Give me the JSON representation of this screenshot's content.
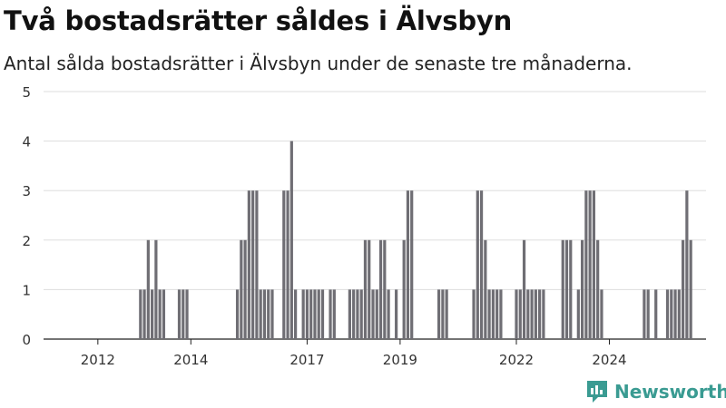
{
  "header": {
    "title": "Två bostadsrätter såldes i Älvsbyn",
    "subtitle": "Antal sålda bostadsrätter i Älvsbyn under de senaste tre månaderna."
  },
  "brand": {
    "name": "Newsworthy",
    "color": "#3a9b92"
  },
  "colors": {
    "bar": "#6f6e74",
    "highlight": "#2a9d8f",
    "grid": "#dddddd"
  },
  "chart_data": {
    "type": "bar",
    "title": "Två bostadsrätter såldes i Älvsbyn",
    "subtitle": "Antal sålda bostadsrätter i Älvsbyn under de senaste tre månaderna.",
    "xlabel": "",
    "ylabel": "",
    "ylim": [
      0,
      5
    ],
    "y_ticks": [
      0,
      1,
      2,
      3,
      4,
      5
    ],
    "x_ticks": [
      "2012",
      "2014",
      "2017",
      "2019",
      "2022",
      "2024"
    ],
    "x_tick_months": [
      12,
      36,
      66,
      90,
      120,
      144
    ],
    "grid": true,
    "start_period": "2011-01",
    "values": [
      0,
      0,
      0,
      0,
      0,
      0,
      0,
      0,
      0,
      0,
      0,
      0,
      0,
      0,
      0,
      0,
      0,
      0,
      0,
      0,
      0,
      0,
      0,
      1,
      1,
      2,
      1,
      2,
      1,
      1,
      0,
      0,
      0,
      1,
      1,
      1,
      0,
      0,
      0,
      0,
      0,
      0,
      0,
      0,
      0,
      0,
      0,
      0,
      1,
      2,
      2,
      3,
      3,
      3,
      1,
      1,
      1,
      1,
      0,
      0,
      3,
      3,
      4,
      1,
      0,
      1,
      1,
      1,
      1,
      1,
      1,
      0,
      1,
      1,
      0,
      0,
      0,
      1,
      1,
      1,
      1,
      2,
      2,
      1,
      1,
      2,
      2,
      1,
      0,
      1,
      0,
      2,
      3,
      3,
      0,
      0,
      0,
      0,
      0,
      0,
      1,
      1,
      1,
      0,
      0,
      0,
      0,
      0,
      0,
      1,
      3,
      3,
      2,
      1,
      1,
      1,
      1,
      0,
      0,
      0,
      1,
      1,
      2,
      1,
      1,
      1,
      1,
      1,
      0,
      0,
      0,
      0,
      2,
      2,
      2,
      0,
      1,
      2,
      3,
      3,
      3,
      2,
      1,
      0,
      0,
      0,
      0,
      0,
      0,
      0,
      0,
      0,
      0,
      1,
      1,
      0,
      1,
      0,
      0,
      1,
      1,
      1,
      1,
      2,
      3,
      2
    ],
    "highlight_index": 167,
    "highlight_label": "2"
  }
}
